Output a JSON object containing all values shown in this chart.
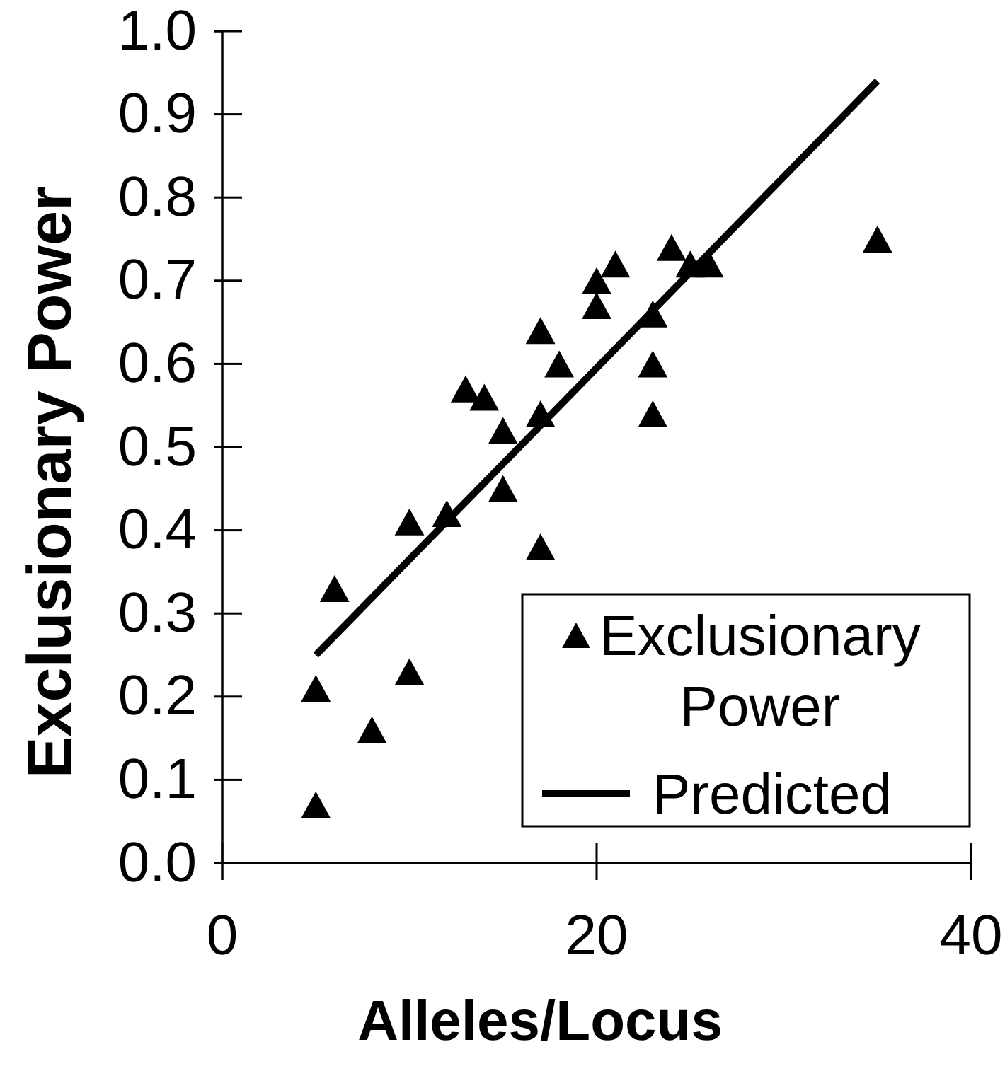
{
  "chart_data": {
    "type": "scatter",
    "xlabel": "Alleles/Locus",
    "ylabel": "Exclusionary Power",
    "xlim": [
      0,
      40
    ],
    "xticks": [
      0,
      20,
      40
    ],
    "ylim": [
      0,
      1
    ],
    "yticks": [
      {
        "value": 0,
        "label": "0.0"
      },
      {
        "value": 0.1,
        "label": "0.1"
      },
      {
        "value": 0.2,
        "label": "0.2"
      },
      {
        "value": 0.3,
        "label": "0.3"
      },
      {
        "value": 0.4,
        "label": "0.4"
      },
      {
        "value": 0.5,
        "label": "0.5"
      },
      {
        "value": 0.6,
        "label": "0.6"
      },
      {
        "value": 0.7,
        "label": "0.7"
      },
      {
        "value": 0.8,
        "label": "0.8"
      },
      {
        "value": 0.9,
        "label": "0.9"
      },
      {
        "value": 1,
        "label": "1.0"
      }
    ],
    "grid": false,
    "legend": "bottom right",
    "marker": "triangle",
    "series": [
      {
        "name": "Exclusionary Power",
        "color": "#000000",
        "x": [
          5,
          5,
          6,
          8,
          10,
          10,
          12,
          13,
          14,
          15,
          15,
          17,
          17,
          17,
          18,
          20,
          20,
          21,
          23,
          23,
          23,
          24,
          25,
          26,
          35
        ],
        "values": [
          0.07,
          0.21,
          0.33,
          0.16,
          0.23,
          0.41,
          0.42,
          0.57,
          0.56,
          0.45,
          0.52,
          0.38,
          0.54,
          0.64,
          0.6,
          0.67,
          0.7,
          0.72,
          0.54,
          0.6,
          0.66,
          0.74,
          0.72,
          0.72,
          0.75
        ]
      },
      {
        "name": "Predicted",
        "type": "line",
        "color": "#000000",
        "marker": "none",
        "line_style": "solid",
        "x": [
          5,
          35
        ],
        "values": [
          0.25,
          0.94
        ]
      }
    ]
  }
}
